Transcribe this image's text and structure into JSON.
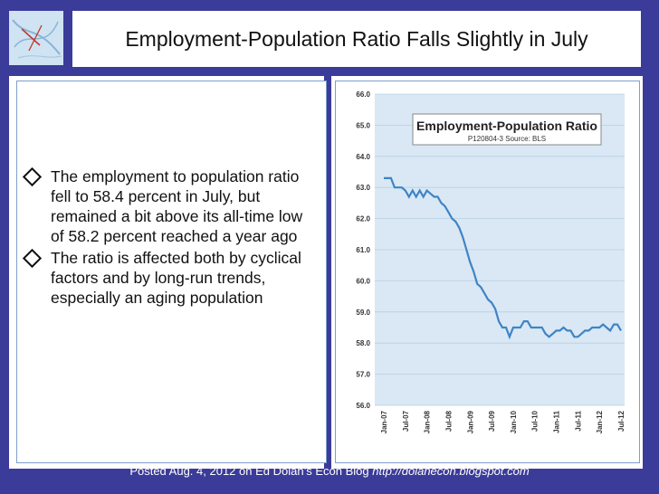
{
  "slide": {
    "title": "Employment-Population Ratio Falls Slightly in July",
    "bullets": [
      "The employment to population ratio fell to 58.4 percent in July, but remained a bit above its all-time low of 58.2 percent reached a year ago",
      "The ratio is affected both by cyclical factors and by long-run trends, especially an aging population"
    ],
    "footer_text": "Posted Aug. 4, 2012 on Ed Dolan’s Econ Blog",
    "footer_url": "http://dolanecon.blogspot.com"
  },
  "colors": {
    "slide_background": "#3b3b9a",
    "plot_background": "#d9e8f4",
    "line": "#3f84c6"
  },
  "chart_data": {
    "type": "line",
    "title": "Employment-Population Ratio",
    "subtitle": "P120804-3 Source: BLS",
    "ylim": [
      56.0,
      66.0
    ],
    "yticks": [
      "56.0",
      "57.0",
      "58.0",
      "59.0",
      "60.0",
      "61.0",
      "62.0",
      "63.0",
      "64.0",
      "65.0",
      "66.0"
    ],
    "xticks": [
      "Jan-07",
      "Jul-07",
      "Jan-08",
      "Jul-08",
      "Jan-09",
      "Jul-09",
      "Jan-10",
      "Jul-10",
      "Jan-11",
      "Jul-11",
      "Jan-12",
      "Jul-12"
    ],
    "grid": true,
    "legend": "top-right",
    "x": [
      "Jan-07",
      "Feb-07",
      "Mar-07",
      "Apr-07",
      "May-07",
      "Jun-07",
      "Jul-07",
      "Aug-07",
      "Sep-07",
      "Oct-07",
      "Nov-07",
      "Dec-07",
      "Jan-08",
      "Feb-08",
      "Mar-08",
      "Apr-08",
      "May-08",
      "Jun-08",
      "Jul-08",
      "Aug-08",
      "Sep-08",
      "Oct-08",
      "Nov-08",
      "Dec-08",
      "Jan-09",
      "Feb-09",
      "Mar-09",
      "Apr-09",
      "May-09",
      "Jun-09",
      "Jul-09",
      "Aug-09",
      "Sep-09",
      "Oct-09",
      "Nov-09",
      "Dec-09",
      "Jan-10",
      "Feb-10",
      "Mar-10",
      "Apr-10",
      "May-10",
      "Jun-10",
      "Jul-10",
      "Aug-10",
      "Sep-10",
      "Oct-10",
      "Nov-10",
      "Dec-10",
      "Jan-11",
      "Feb-11",
      "Mar-11",
      "Apr-11",
      "May-11",
      "Jun-11",
      "Jul-11",
      "Aug-11",
      "Sep-11",
      "Oct-11",
      "Nov-11",
      "Dec-11",
      "Jan-12",
      "Feb-12",
      "Mar-12",
      "Apr-12",
      "May-12",
      "Jun-12",
      "Jul-12"
    ],
    "series": [
      {
        "values": [
          63.3,
          63.3,
          63.3,
          63.0,
          63.0,
          63.0,
          62.9,
          62.7,
          62.9,
          62.7,
          62.9,
          62.7,
          62.9,
          62.8,
          62.7,
          62.7,
          62.5,
          62.4,
          62.2,
          62.0,
          61.9,
          61.7,
          61.4,
          61.0,
          60.6,
          60.3,
          59.9,
          59.8,
          59.6,
          59.4,
          59.3,
          59.1,
          58.7,
          58.5,
          58.5,
          58.2,
          58.5,
          58.5,
          58.5,
          58.7,
          58.7,
          58.5,
          58.5,
          58.5,
          58.5,
          58.3,
          58.2,
          58.3,
          58.4,
          58.4,
          58.5,
          58.4,
          58.4,
          58.2,
          58.2,
          58.3,
          58.4,
          58.4,
          58.5,
          58.5,
          58.5,
          58.6,
          58.5,
          58.4,
          58.6,
          58.6,
          58.4
        ]
      }
    ]
  }
}
